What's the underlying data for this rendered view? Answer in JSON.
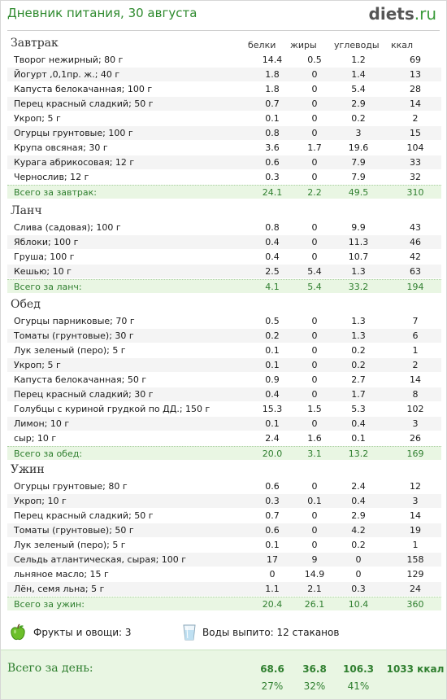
{
  "header": {
    "title": "Дневник питания, 30 августа",
    "logo_main": "diets",
    "logo_suffix": ".ru"
  },
  "columns": {
    "protein": "белки",
    "fat": "жиры",
    "carbs": "углеводы",
    "kcal": "ккал"
  },
  "sections": [
    {
      "title": "Завтрак",
      "items": [
        [
          "Творог нежирный; 80 г",
          "14.4",
          "0.5",
          "1.2",
          "69"
        ],
        [
          "Йогурт ,0,1пр. ж.; 40 г",
          "1.8",
          "0",
          "1.4",
          "13"
        ],
        [
          "Капуста белокачанная; 100 г",
          "1.8",
          "0",
          "5.4",
          "28"
        ],
        [
          "Перец красный сладкий; 50 г",
          "0.7",
          "0",
          "2.9",
          "14"
        ],
        [
          "Укроп; 5 г",
          "0.1",
          "0",
          "0.2",
          "2"
        ],
        [
          "Огурцы грунтовые; 100 г",
          "0.8",
          "0",
          "3",
          "15"
        ],
        [
          "Крупа овсяная; 30 г",
          "3.6",
          "1.7",
          "19.6",
          "104"
        ],
        [
          "Курага абрикосовая; 12 г",
          "0.6",
          "0",
          "7.9",
          "33"
        ],
        [
          "Чернослив; 12 г",
          "0.3",
          "0",
          "7.9",
          "32"
        ]
      ],
      "total": [
        "Всего за завтрак:",
        "24.1",
        "2.2",
        "49.5",
        "310"
      ]
    },
    {
      "title": "Ланч",
      "items": [
        [
          "Слива (садовая); 100 г",
          "0.8",
          "0",
          "9.9",
          "43"
        ],
        [
          "Яблоки; 100 г",
          "0.4",
          "0",
          "11.3",
          "46"
        ],
        [
          "Груша; 100 г",
          "0.4",
          "0",
          "10.7",
          "42"
        ],
        [
          "Кешью; 10 г",
          "2.5",
          "5.4",
          "1.3",
          "63"
        ]
      ],
      "total": [
        "Всего за ланч:",
        "4.1",
        "5.4",
        "33.2",
        "194"
      ]
    },
    {
      "title": "Обед",
      "items": [
        [
          "Огурцы парниковые; 70 г",
          "0.5",
          "0",
          "1.3",
          "7"
        ],
        [
          "Томаты (грунтовые); 30 г",
          "0.2",
          "0",
          "1.3",
          "6"
        ],
        [
          "Лук зеленый (перо); 5 г",
          "0.1",
          "0",
          "0.2",
          "1"
        ],
        [
          "Укроп; 5 г",
          "0.1",
          "0",
          "0.2",
          "2"
        ],
        [
          "Капуста белокачанная; 50 г",
          "0.9",
          "0",
          "2.7",
          "14"
        ],
        [
          "Перец красный сладкий; 30 г",
          "0.4",
          "0",
          "1.7",
          "8"
        ],
        [
          "Голубцы с куриной грудкой по ДД.; 150 г",
          "15.3",
          "1.5",
          "5.3",
          "102"
        ],
        [
          "Лимон; 10 г",
          "0.1",
          "0",
          "0.4",
          "3"
        ],
        [
          "сыр; 10 г",
          "2.4",
          "1.6",
          "0.1",
          "26"
        ]
      ],
      "total": [
        "Всего за обед:",
        "20.0",
        "3.1",
        "13.2",
        "169"
      ]
    },
    {
      "title": "Ужин",
      "items": [
        [
          "Огурцы грунтовые; 80 г",
          "0.6",
          "0",
          "2.4",
          "12"
        ],
        [
          "Укроп; 10 г",
          "0.3",
          "0.1",
          "0.4",
          "3"
        ],
        [
          "Перец красный сладкий; 50 г",
          "0.7",
          "0",
          "2.9",
          "14"
        ],
        [
          "Томаты (грунтовые); 50 г",
          "0.6",
          "0",
          "4.2",
          "19"
        ],
        [
          "Лук зеленый (перо); 5 г",
          "0.1",
          "0",
          "0.2",
          "1"
        ],
        [
          "Сельдь атлантическая, сырая; 100 г",
          "17",
          "9",
          "0",
          "158"
        ],
        [
          "льняное масло; 15 г",
          "0",
          "14.9",
          "0",
          "129"
        ],
        [
          "Лён, семя льна; 5 г",
          "1.1",
          "2.1",
          "0.3",
          "24"
        ]
      ],
      "total": [
        "Всего за ужин:",
        "20.4",
        "26.1",
        "10.4",
        "360"
      ]
    }
  ],
  "extras": {
    "fruits": "Фрукты и овощи: 3",
    "water": "Воды выпито: 12 стаканов",
    "fruit_icon": "apple-icon",
    "water_icon": "glass-icon"
  },
  "day_total": {
    "label": "Всего за день:",
    "protein": "68.6",
    "fat": "36.8",
    "carbs": "106.3",
    "kcal": "1033 ккал",
    "protein_pct": "27%",
    "fat_pct": "32%",
    "carbs_pct": "41%"
  },
  "colors": {
    "accent_green": "#2f7f2f",
    "total_bg": "#e9f6e3"
  }
}
